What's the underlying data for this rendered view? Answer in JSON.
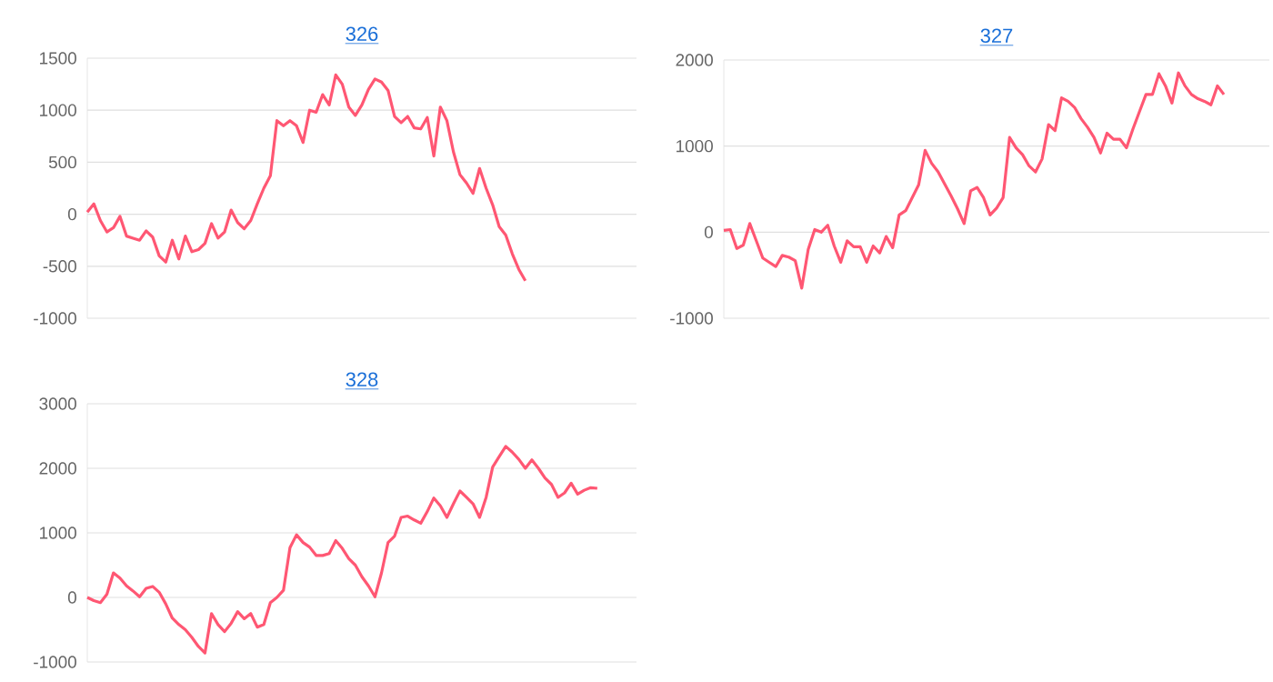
{
  "chart_data": [
    {
      "type": "line",
      "title": "326",
      "color": "#ff5773",
      "grid": "y",
      "tick_labels": "y",
      "ylim": [
        -1000,
        1500
      ],
      "yticks": [
        -1000,
        -500,
        0,
        500,
        1000,
        1500
      ],
      "categories": [
        null,
        null,
        null,
        null,
        null,
        null,
        null,
        null,
        null,
        null,
        null,
        null,
        null,
        null,
        null,
        null,
        null,
        null,
        null,
        null,
        null,
        null,
        null,
        null,
        null,
        null,
        null,
        null,
        null,
        null,
        null,
        null,
        null,
        null,
        null,
        null,
        null,
        null,
        null,
        null,
        null,
        null,
        null,
        null,
        null,
        null,
        null,
        null,
        null,
        null,
        null,
        null,
        null,
        null,
        null,
        null,
        null,
        null,
        null,
        null,
        null,
        null,
        null,
        null,
        null,
        null,
        null,
        null,
        null,
        null,
        null,
        null,
        null,
        null,
        null,
        null,
        null,
        null,
        null,
        null,
        null,
        null,
        null,
        null,
        null
      ],
      "values": [
        20,
        100,
        -60,
        -170,
        -130,
        -20,
        -210,
        -230,
        -250,
        -160,
        -220,
        -400,
        -460,
        -250,
        -430,
        -210,
        -360,
        -340,
        -280,
        -90,
        -230,
        -170,
        40,
        -80,
        -140,
        -60,
        100,
        250,
        370,
        900,
        850,
        900,
        850,
        690,
        1000,
        980,
        1150,
        1050,
        1340,
        1250,
        1030,
        950,
        1050,
        1200,
        1300,
        1270,
        1190,
        940,
        880,
        940,
        830,
        820,
        930,
        560,
        1030,
        900,
        600,
        380,
        300,
        200,
        440,
        250,
        90,
        -120,
        -200,
        -380,
        -530,
        -640,
        null,
        null,
        null,
        null,
        null,
        null,
        null,
        null,
        null,
        null,
        null,
        null,
        null,
        null,
        null,
        null,
        null
      ]
    },
    {
      "type": "line",
      "title": "327",
      "color": "#ff5773",
      "grid": "y",
      "tick_labels": "y",
      "ylim": [
        -1000,
        2000
      ],
      "yticks": [
        -1000,
        0,
        1000,
        2000
      ],
      "categories": [
        null,
        null,
        null,
        null,
        null,
        null,
        null,
        null,
        null,
        null,
        null,
        null,
        null,
        null,
        null,
        null,
        null,
        null,
        null,
        null,
        null,
        null,
        null,
        null,
        null,
        null,
        null,
        null,
        null,
        null,
        null,
        null,
        null,
        null,
        null,
        null,
        null,
        null,
        null,
        null,
        null,
        null,
        null,
        null,
        null,
        null,
        null,
        null,
        null,
        null,
        null,
        null,
        null,
        null,
        null,
        null,
        null,
        null,
        null,
        null,
        null,
        null,
        null,
        null,
        null,
        null,
        null,
        null,
        null,
        null,
        null,
        null,
        null,
        null,
        null,
        null,
        null,
        null,
        null,
        null,
        null,
        null,
        null,
        null,
        null
      ],
      "values": [
        20,
        30,
        -190,
        -150,
        100,
        -100,
        -300,
        -350,
        -400,
        -270,
        -290,
        -330,
        -650,
        -200,
        30,
        0,
        80,
        -160,
        -350,
        -100,
        -170,
        -170,
        -350,
        -160,
        -240,
        -50,
        -180,
        200,
        250,
        400,
        550,
        950,
        800,
        700,
        560,
        420,
        270,
        100,
        480,
        520,
        400,
        200,
        280,
        400,
        1100,
        980,
        900,
        770,
        700,
        850,
        1250,
        1180,
        1560,
        1520,
        1450,
        1320,
        1220,
        1100,
        920,
        1150,
        1080,
        1080,
        980,
        1200,
        1400,
        1600,
        1600,
        1840,
        1700,
        1500,
        1850,
        1700,
        1600,
        1550,
        1520,
        1480,
        1700,
        1600,
        null,
        null,
        null,
        null,
        null,
        null,
        null
      ]
    },
    {
      "type": "line",
      "title": "328",
      "color": "#ff5773",
      "grid": "y",
      "tick_labels": "y",
      "ylim": [
        -1000,
        3000
      ],
      "yticks": [
        -1000,
        0,
        1000,
        2000,
        3000
      ],
      "categories": [
        null,
        null,
        null,
        null,
        null,
        null,
        null,
        null,
        null,
        null,
        null,
        null,
        null,
        null,
        null,
        null,
        null,
        null,
        null,
        null,
        null,
        null,
        null,
        null,
        null,
        null,
        null,
        null,
        null,
        null,
        null,
        null,
        null,
        null,
        null,
        null,
        null,
        null,
        null,
        null,
        null,
        null,
        null,
        null,
        null,
        null,
        null,
        null,
        null,
        null,
        null,
        null,
        null,
        null,
        null,
        null,
        null,
        null,
        null,
        null,
        null,
        null,
        null,
        null,
        null,
        null,
        null,
        null,
        null,
        null,
        null,
        null,
        null,
        null,
        null,
        null,
        null,
        null,
        null,
        null,
        null,
        null,
        null,
        null,
        null
      ],
      "values": [
        0,
        -50,
        -80,
        50,
        380,
        300,
        180,
        100,
        10,
        140,
        170,
        80,
        -100,
        -320,
        -420,
        -500,
        -620,
        -760,
        -860,
        -250,
        -420,
        -530,
        -400,
        -220,
        -330,
        -250,
        -460,
        -420,
        -80,
        0,
        110,
        770,
        970,
        850,
        780,
        650,
        650,
        680,
        880,
        760,
        600,
        500,
        320,
        180,
        10,
        380,
        850,
        950,
        1240,
        1260,
        1200,
        1150,
        1330,
        1540,
        1420,
        1240,
        1450,
        1650,
        1550,
        1450,
        1240,
        1550,
        2020,
        2180,
        2340,
        2250,
        2140,
        2000,
        2130,
        2000,
        1850,
        1750,
        1550,
        1620,
        1770,
        1600,
        1660,
        1700,
        1690,
        null,
        null,
        null,
        null,
        null,
        null
      ]
    }
  ]
}
